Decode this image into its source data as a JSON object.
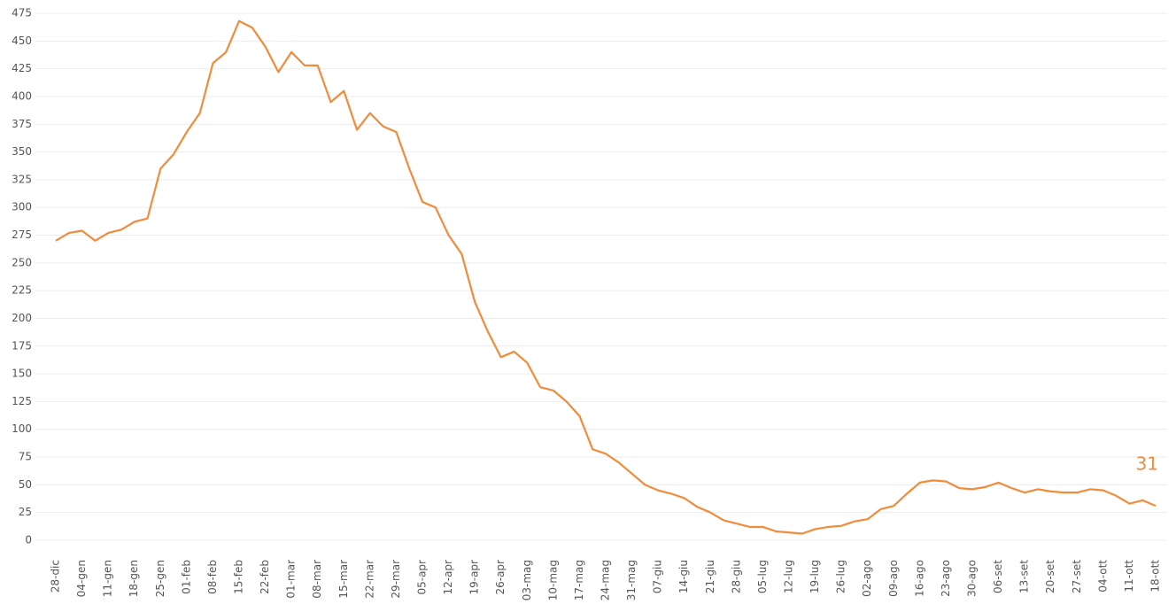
{
  "chart_data": {
    "type": "line",
    "categories": [
      "28-dic",
      null,
      "04-gen",
      null,
      "11-gen",
      null,
      "18-gen",
      null,
      "25-gen",
      null,
      "01-feb",
      null,
      "08-feb",
      null,
      "15-feb",
      null,
      "22-feb",
      null,
      "01-mar",
      null,
      "08-mar",
      null,
      "15-mar",
      null,
      "22-mar",
      null,
      "29-mar",
      null,
      "05-apr",
      null,
      "12-apr",
      null,
      "19-apr",
      null,
      "26-apr",
      null,
      "03-mag",
      null,
      "10-mag",
      null,
      "17-mag",
      null,
      "24-mag",
      null,
      "31-mag",
      null,
      "07-giu",
      null,
      "14-giu",
      null,
      "21-giu",
      null,
      "28-giu",
      null,
      "05-lug",
      null,
      "12-lug",
      null,
      "19-lug",
      null,
      "26-lug",
      null,
      "02-ago",
      null,
      "09-ago",
      null,
      "16-ago",
      null,
      "23-ago",
      null,
      "30-ago",
      null,
      "06-set",
      null,
      "13-set",
      null,
      "20-set",
      null,
      "27-set",
      null,
      "04-ott",
      null,
      "11-ott",
      null,
      "18-ott"
    ],
    "series": [
      {
        "color": "#f08c3c",
        "values": [
          270,
          277,
          279,
          270,
          277,
          280,
          287,
          290,
          335,
          348,
          368,
          385,
          430,
          440,
          468,
          462,
          445,
          422,
          440,
          428,
          428,
          395,
          405,
          370,
          385,
          373,
          368,
          335,
          305,
          300,
          275,
          258,
          215,
          188,
          165,
          170,
          160,
          138,
          135,
          125,
          112,
          82,
          78,
          70,
          60,
          50,
          45,
          42,
          38,
          30,
          25,
          18,
          15,
          12,
          12,
          8,
          7,
          6,
          10,
          12,
          13,
          17,
          19,
          28,
          31,
          42,
          52,
          54,
          53,
          47,
          46,
          48,
          52,
          47,
          43,
          46,
          44,
          43,
          43,
          46,
          45,
          40,
          33,
          36,
          31
        ]
      }
    ],
    "ylim": [
      -10,
      475
    ],
    "yticks": [
      0,
      25,
      50,
      75,
      100,
      125,
      150,
      175,
      200,
      225,
      250,
      275,
      300,
      325,
      350,
      375,
      400,
      425,
      450,
      475
    ],
    "grid": true
  }
}
